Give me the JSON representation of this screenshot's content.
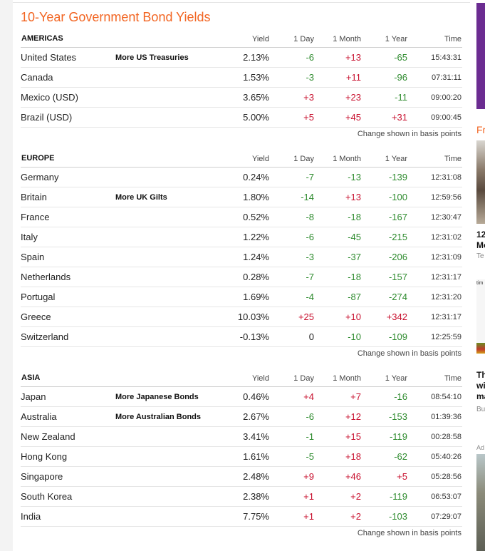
{
  "title": "10-Year Government Bond Yields",
  "columns": {
    "yield": "Yield",
    "day": "1 Day",
    "month": "1 Month",
    "year": "1 Year",
    "time": "Time"
  },
  "note": "Change shown in basis points",
  "americas": {
    "name": "AMERICAS",
    "rows": [
      {
        "country": "United States",
        "more": "More US Treasuries",
        "yield": "2.13%",
        "day": "-6",
        "month": "+13",
        "year": "-65",
        "time": "15:43:31"
      },
      {
        "country": "Canada",
        "more": "",
        "yield": "1.53%",
        "day": "-3",
        "month": "+11",
        "year": "-96",
        "time": "07:31:11"
      },
      {
        "country": "Mexico (USD)",
        "more": "",
        "yield": "3.65%",
        "day": "+3",
        "month": "+23",
        "year": "-11",
        "time": "09:00:20"
      },
      {
        "country": "Brazil (USD)",
        "more": "",
        "yield": "5.00%",
        "day": "+5",
        "month": "+45",
        "year": "+31",
        "time": "09:00:45"
      }
    ]
  },
  "europe": {
    "name": "EUROPE",
    "rows": [
      {
        "country": "Germany",
        "more": "",
        "yield": "0.24%",
        "day": "-7",
        "month": "-13",
        "year": "-139",
        "time": "12:31:08"
      },
      {
        "country": "Britain",
        "more": "More UK Gilts",
        "yield": "1.80%",
        "day": "-14",
        "month": "+13",
        "year": "-100",
        "time": "12:59:56"
      },
      {
        "country": "France",
        "more": "",
        "yield": "0.52%",
        "day": "-8",
        "month": "-18",
        "year": "-167",
        "time": "12:30:47"
      },
      {
        "country": "Italy",
        "more": "",
        "yield": "1.22%",
        "day": "-6",
        "month": "-45",
        "year": "-215",
        "time": "12:31:02"
      },
      {
        "country": "Spain",
        "more": "",
        "yield": "1.24%",
        "day": "-3",
        "month": "-37",
        "year": "-206",
        "time": "12:31:09"
      },
      {
        "country": "Netherlands",
        "more": "",
        "yield": "0.28%",
        "day": "-7",
        "month": "-18",
        "year": "-157",
        "time": "12:31:17"
      },
      {
        "country": "Portugal",
        "more": "",
        "yield": "1.69%",
        "day": "-4",
        "month": "-87",
        "year": "-274",
        "time": "12:31:20"
      },
      {
        "country": "Greece",
        "more": "",
        "yield": "10.03%",
        "day": "+25",
        "month": "+10",
        "year": "+342",
        "time": "12:31:17"
      },
      {
        "country": "Switzerland",
        "more": "",
        "yield": "-0.13%",
        "day": "0",
        "month": "-10",
        "year": "-109",
        "time": "12:25:59"
      }
    ]
  },
  "asia": {
    "name": "ASIA",
    "rows": [
      {
        "country": "Japan",
        "more": "More Japanese Bonds",
        "yield": "0.46%",
        "day": "+4",
        "month": "+7",
        "year": "-16",
        "time": "08:54:10"
      },
      {
        "country": "Australia",
        "more": "More Australian Bonds",
        "yield": "2.67%",
        "day": "-6",
        "month": "+12",
        "year": "-153",
        "time": "01:39:36"
      },
      {
        "country": "New Zealand",
        "more": "",
        "yield": "3.41%",
        "day": "-1",
        "month": "+15",
        "year": "-119",
        "time": "00:28:58"
      },
      {
        "country": "Hong Kong",
        "more": "",
        "yield": "1.61%",
        "day": "-5",
        "month": "+18",
        "year": "-62",
        "time": "05:40:26"
      },
      {
        "country": "Singapore",
        "more": "",
        "yield": "2.48%",
        "day": "+9",
        "month": "+46",
        "year": "+5",
        "time": "05:28:56"
      },
      {
        "country": "South Korea",
        "more": "",
        "yield": "2.38%",
        "day": "+1",
        "month": "+2",
        "year": "-119",
        "time": "06:53:07"
      },
      {
        "country": "India",
        "more": "",
        "yield": "7.75%",
        "day": "+1",
        "month": "+2",
        "year": "-103",
        "time": "07:29:07"
      }
    ]
  },
  "sidebar": {
    "section_heading": "Fr",
    "story1_line1": "12",
    "story1_line2": "Mo",
    "story1_source": "Te",
    "chart_label": "tim",
    "story2_line1": "Th",
    "story2_line2": "wi",
    "story2_line3": "ma",
    "story2_source": "Bu",
    "ad_label": "Ad"
  },
  "colors": {
    "title": "#f26522",
    "positive": "#c8102e",
    "negative": "#2e8b2e",
    "sidebar_purple": "#6b2c91"
  }
}
